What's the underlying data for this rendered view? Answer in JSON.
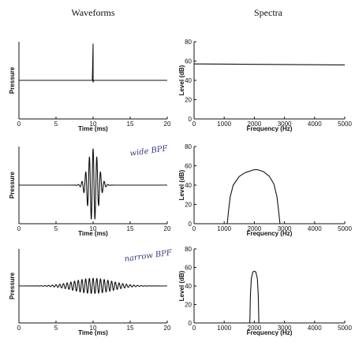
{
  "headings": {
    "left": "Waveforms",
    "right": "Spectra"
  },
  "annotations": [
    "wide BPF",
    "narrow BPF"
  ],
  "chart_data": [
    {
      "type": "line",
      "title": "",
      "xlabel": "Time (ms)",
      "ylabel": "Pressure",
      "xlim": [
        0,
        20
      ],
      "xticks": [
        "0",
        "5",
        "10",
        "15",
        "20"
      ],
      "series": [
        {
          "kind": "impulse",
          "x": [
            0,
            9.9,
            10.0,
            10.0,
            10.1,
            20
          ],
          "y": [
            0,
            0,
            1,
            -0.05,
            0,
            0
          ]
        }
      ]
    },
    {
      "type": "line",
      "title": "",
      "xlabel": "Frequency (Hz)",
      "ylabel": "Level (dB)",
      "xlim": [
        0,
        5000
      ],
      "ylim": [
        0,
        80
      ],
      "xticks": [
        "0",
        "1000",
        "2000",
        "3000",
        "4000",
        "5000"
      ],
      "yticks": [
        "0",
        "20",
        "40",
        "60",
        "80"
      ],
      "series": [
        {
          "x": [
            0,
            5000
          ],
          "y": [
            57,
            56
          ]
        }
      ]
    },
    {
      "type": "line",
      "title": "",
      "xlabel": "Time (ms)",
      "ylabel": "Pressure",
      "xlim": [
        0,
        20
      ],
      "xticks": [
        "0",
        "5",
        "10",
        "15",
        "20"
      ],
      "series": [
        {
          "kind": "burst",
          "center": 10,
          "freq_khz": 2,
          "amp": 1,
          "sigma": 0.7
        }
      ]
    },
    {
      "type": "line",
      "title": "",
      "xlabel": "Frequency (Hz)",
      "ylabel": "Level (dB)",
      "xlim": [
        0,
        5000
      ],
      "ylim": [
        0,
        80
      ],
      "xticks": [
        "0",
        "1000",
        "2000",
        "3000",
        "4000",
        "5000"
      ],
      "yticks": [
        "0",
        "20",
        "40",
        "60",
        "80"
      ],
      "series": [
        {
          "x": [
            1100,
            1150,
            1200,
            1300,
            1500,
            1700,
            1900,
            2000,
            2100,
            2300,
            2500,
            2650,
            2750,
            2800,
            2850
          ],
          "y": [
            0,
            15,
            28,
            40,
            49,
            53,
            55,
            56,
            56,
            54,
            49,
            41,
            28,
            15,
            0
          ]
        }
      ]
    },
    {
      "type": "line",
      "title": "",
      "xlabel": "Time (ms)",
      "ylabel": "Pressure",
      "xlim": [
        0,
        20
      ],
      "xticks": [
        "0",
        "5",
        "10",
        "15",
        "20"
      ],
      "series": [
        {
          "kind": "burst",
          "center": 10,
          "freq_khz": 2,
          "amp": 0.22,
          "sigma": 2.6
        }
      ]
    },
    {
      "type": "line",
      "title": "",
      "xlabel": "Frequency (Hz)",
      "ylabel": "Level (dB)",
      "xlim": [
        0,
        5000
      ],
      "ylim": [
        0,
        80
      ],
      "xticks": [
        "0",
        "1000",
        "2000",
        "3000",
        "4000",
        "5000"
      ],
      "yticks": [
        "0",
        "20",
        "40",
        "60",
        "80"
      ],
      "series": [
        {
          "x": [
            1850,
            1870,
            1900,
            1950,
            2000,
            2050,
            2100,
            2130,
            2150
          ],
          "y": [
            0,
            30,
            48,
            55,
            56,
            55,
            48,
            30,
            0
          ]
        }
      ]
    }
  ]
}
